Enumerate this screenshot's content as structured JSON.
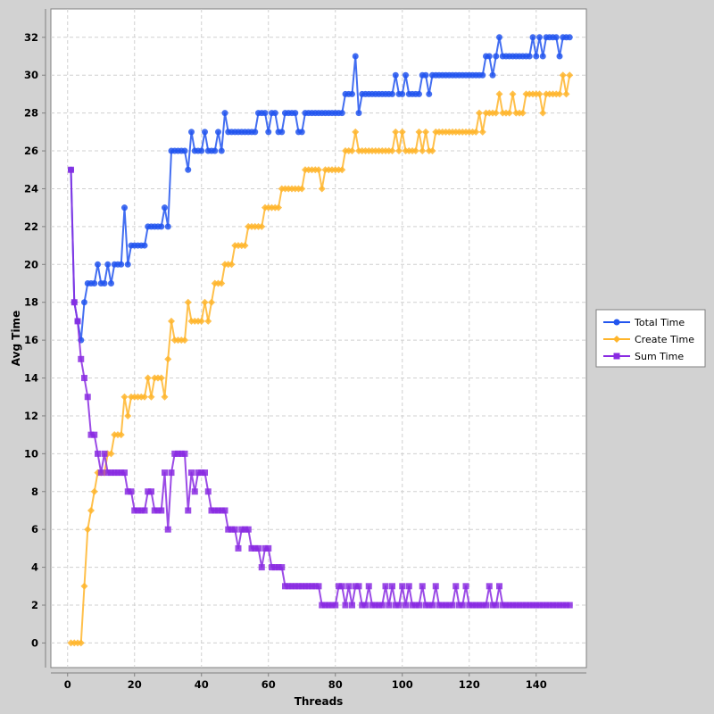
{
  "chart_data": {
    "type": "line",
    "title": "",
    "xlabel": "Threads",
    "ylabel": "Avg Time",
    "xlim": [
      -5,
      155
    ],
    "ylim": [
      -1.3,
      33.5
    ],
    "xticks": [
      0,
      20,
      40,
      60,
      80,
      100,
      120,
      140
    ],
    "yticks": [
      0,
      2,
      4,
      6,
      8,
      10,
      12,
      14,
      16,
      18,
      20,
      22,
      24,
      26,
      28,
      30,
      32
    ],
    "grid": true,
    "legend_position": "right",
    "x": [
      1,
      2,
      3,
      4,
      5,
      6,
      7,
      8,
      9,
      10,
      11,
      12,
      13,
      14,
      15,
      16,
      17,
      18,
      19,
      20,
      21,
      22,
      23,
      24,
      25,
      26,
      27,
      28,
      29,
      30,
      31,
      32,
      33,
      34,
      35,
      36,
      37,
      38,
      39,
      40,
      41,
      42,
      43,
      44,
      45,
      46,
      47,
      48,
      49,
      50,
      51,
      52,
      53,
      54,
      55,
      56,
      57,
      58,
      59,
      60,
      61,
      62,
      63,
      64,
      65,
      66,
      67,
      68,
      69,
      70,
      71,
      72,
      73,
      74,
      75,
      76,
      77,
      78,
      79,
      80,
      81,
      82,
      83,
      84,
      85,
      86,
      87,
      88,
      89,
      90,
      91,
      92,
      93,
      94,
      95,
      96,
      97,
      98,
      99,
      100,
      101,
      102,
      103,
      104,
      105,
      106,
      107,
      108,
      109,
      110,
      111,
      112,
      113,
      114,
      115,
      116,
      117,
      118,
      119,
      120,
      121,
      122,
      123,
      124,
      125,
      126,
      127,
      128,
      129,
      130,
      131,
      132,
      133,
      134,
      135,
      136,
      137,
      138,
      139,
      140,
      141,
      142,
      143,
      144,
      145,
      146,
      147,
      148,
      149,
      150
    ],
    "series": [
      {
        "name": "Total Time",
        "color": "#2255ee",
        "marker": "circle",
        "values": [
          25,
          18,
          17,
          16,
          18,
          19,
          19,
          19,
          20,
          19,
          19,
          20,
          19,
          20,
          20,
          20,
          23,
          20,
          21,
          21,
          21,
          21,
          21,
          22,
          22,
          22,
          22,
          22,
          23,
          22,
          26,
          26,
          26,
          26,
          26,
          25,
          27,
          26,
          26,
          26,
          27,
          26,
          26,
          26,
          27,
          26,
          28,
          27,
          27,
          27,
          27,
          27,
          27,
          27,
          27,
          27,
          28,
          28,
          28,
          27,
          28,
          28,
          27,
          27,
          28,
          28,
          28,
          28,
          27,
          27,
          28,
          28,
          28,
          28,
          28,
          28,
          28,
          28,
          28,
          28,
          28,
          28,
          29,
          29,
          29,
          31,
          28,
          29,
          29,
          29,
          29,
          29,
          29,
          29,
          29,
          29,
          29,
          30,
          29,
          29,
          30,
          29,
          29,
          29,
          29,
          30,
          30,
          29,
          30,
          30,
          30,
          30,
          30,
          30,
          30,
          30,
          30,
          30,
          30,
          30,
          30,
          30,
          30,
          30,
          31,
          31,
          30,
          31,
          32,
          31,
          31,
          31,
          31,
          31,
          31,
          31,
          31,
          31,
          32,
          31,
          32,
          31,
          32,
          32,
          32,
          32,
          31,
          32,
          32,
          32
        ]
      },
      {
        "name": "Create Time",
        "color": "#ffb52b",
        "marker": "diamond",
        "values": [
          0,
          0,
          0,
          0,
          3,
          6,
          7,
          8,
          9,
          9,
          9,
          10,
          10,
          11,
          11,
          11,
          13,
          12,
          13,
          13,
          13,
          13,
          13,
          14,
          13,
          14,
          14,
          14,
          13,
          15,
          17,
          16,
          16,
          16,
          16,
          18,
          17,
          17,
          17,
          17,
          18,
          17,
          18,
          19,
          19,
          19,
          20,
          20,
          20,
          21,
          21,
          21,
          21,
          22,
          22,
          22,
          22,
          22,
          23,
          23,
          23,
          23,
          23,
          24,
          24,
          24,
          24,
          24,
          24,
          24,
          25,
          25,
          25,
          25,
          25,
          24,
          25,
          25,
          25,
          25,
          25,
          25,
          26,
          26,
          26,
          27,
          26,
          26,
          26,
          26,
          26,
          26,
          26,
          26,
          26,
          26,
          26,
          27,
          26,
          27,
          26,
          26,
          26,
          26,
          27,
          26,
          27,
          26,
          26,
          27,
          27,
          27,
          27,
          27,
          27,
          27,
          27,
          27,
          27,
          27,
          27,
          27,
          28,
          27,
          28,
          28,
          28,
          28,
          29,
          28,
          28,
          28,
          29,
          28,
          28,
          28,
          29,
          29,
          29,
          29,
          29,
          28,
          29,
          29,
          29,
          29,
          29,
          30,
          29,
          30
        ]
      },
      {
        "name": "Sum Time",
        "color": "#8a2be2",
        "marker": "square",
        "values": [
          25,
          18,
          17,
          15,
          14,
          13,
          11,
          11,
          10,
          9,
          10,
          9,
          9,
          9,
          9,
          9,
          9,
          8,
          8,
          7,
          7,
          7,
          7,
          8,
          8,
          7,
          7,
          7,
          9,
          6,
          9,
          10,
          10,
          10,
          10,
          7,
          9,
          8,
          9,
          9,
          9,
          8,
          7,
          7,
          7,
          7,
          7,
          6,
          6,
          6,
          5,
          6,
          6,
          6,
          5,
          5,
          5,
          4,
          5,
          5,
          4,
          4,
          4,
          4,
          3,
          3,
          3,
          3,
          3,
          3,
          3,
          3,
          3,
          3,
          3,
          2,
          2,
          2,
          2,
          2,
          3,
          3,
          2,
          3,
          2,
          3,
          3,
          2,
          2,
          3,
          2,
          2,
          2,
          2,
          3,
          2,
          3,
          2,
          2,
          3,
          2,
          3,
          2,
          2,
          2,
          3,
          2,
          2,
          2,
          3,
          2,
          2,
          2,
          2,
          2,
          3,
          2,
          2,
          3,
          2,
          2,
          2,
          2,
          2,
          2,
          3,
          2,
          2,
          3,
          2,
          2,
          2,
          2,
          2,
          2,
          2,
          2,
          2,
          2,
          2,
          2,
          2,
          2,
          2,
          2,
          2,
          2,
          2,
          2,
          2
        ]
      }
    ]
  }
}
